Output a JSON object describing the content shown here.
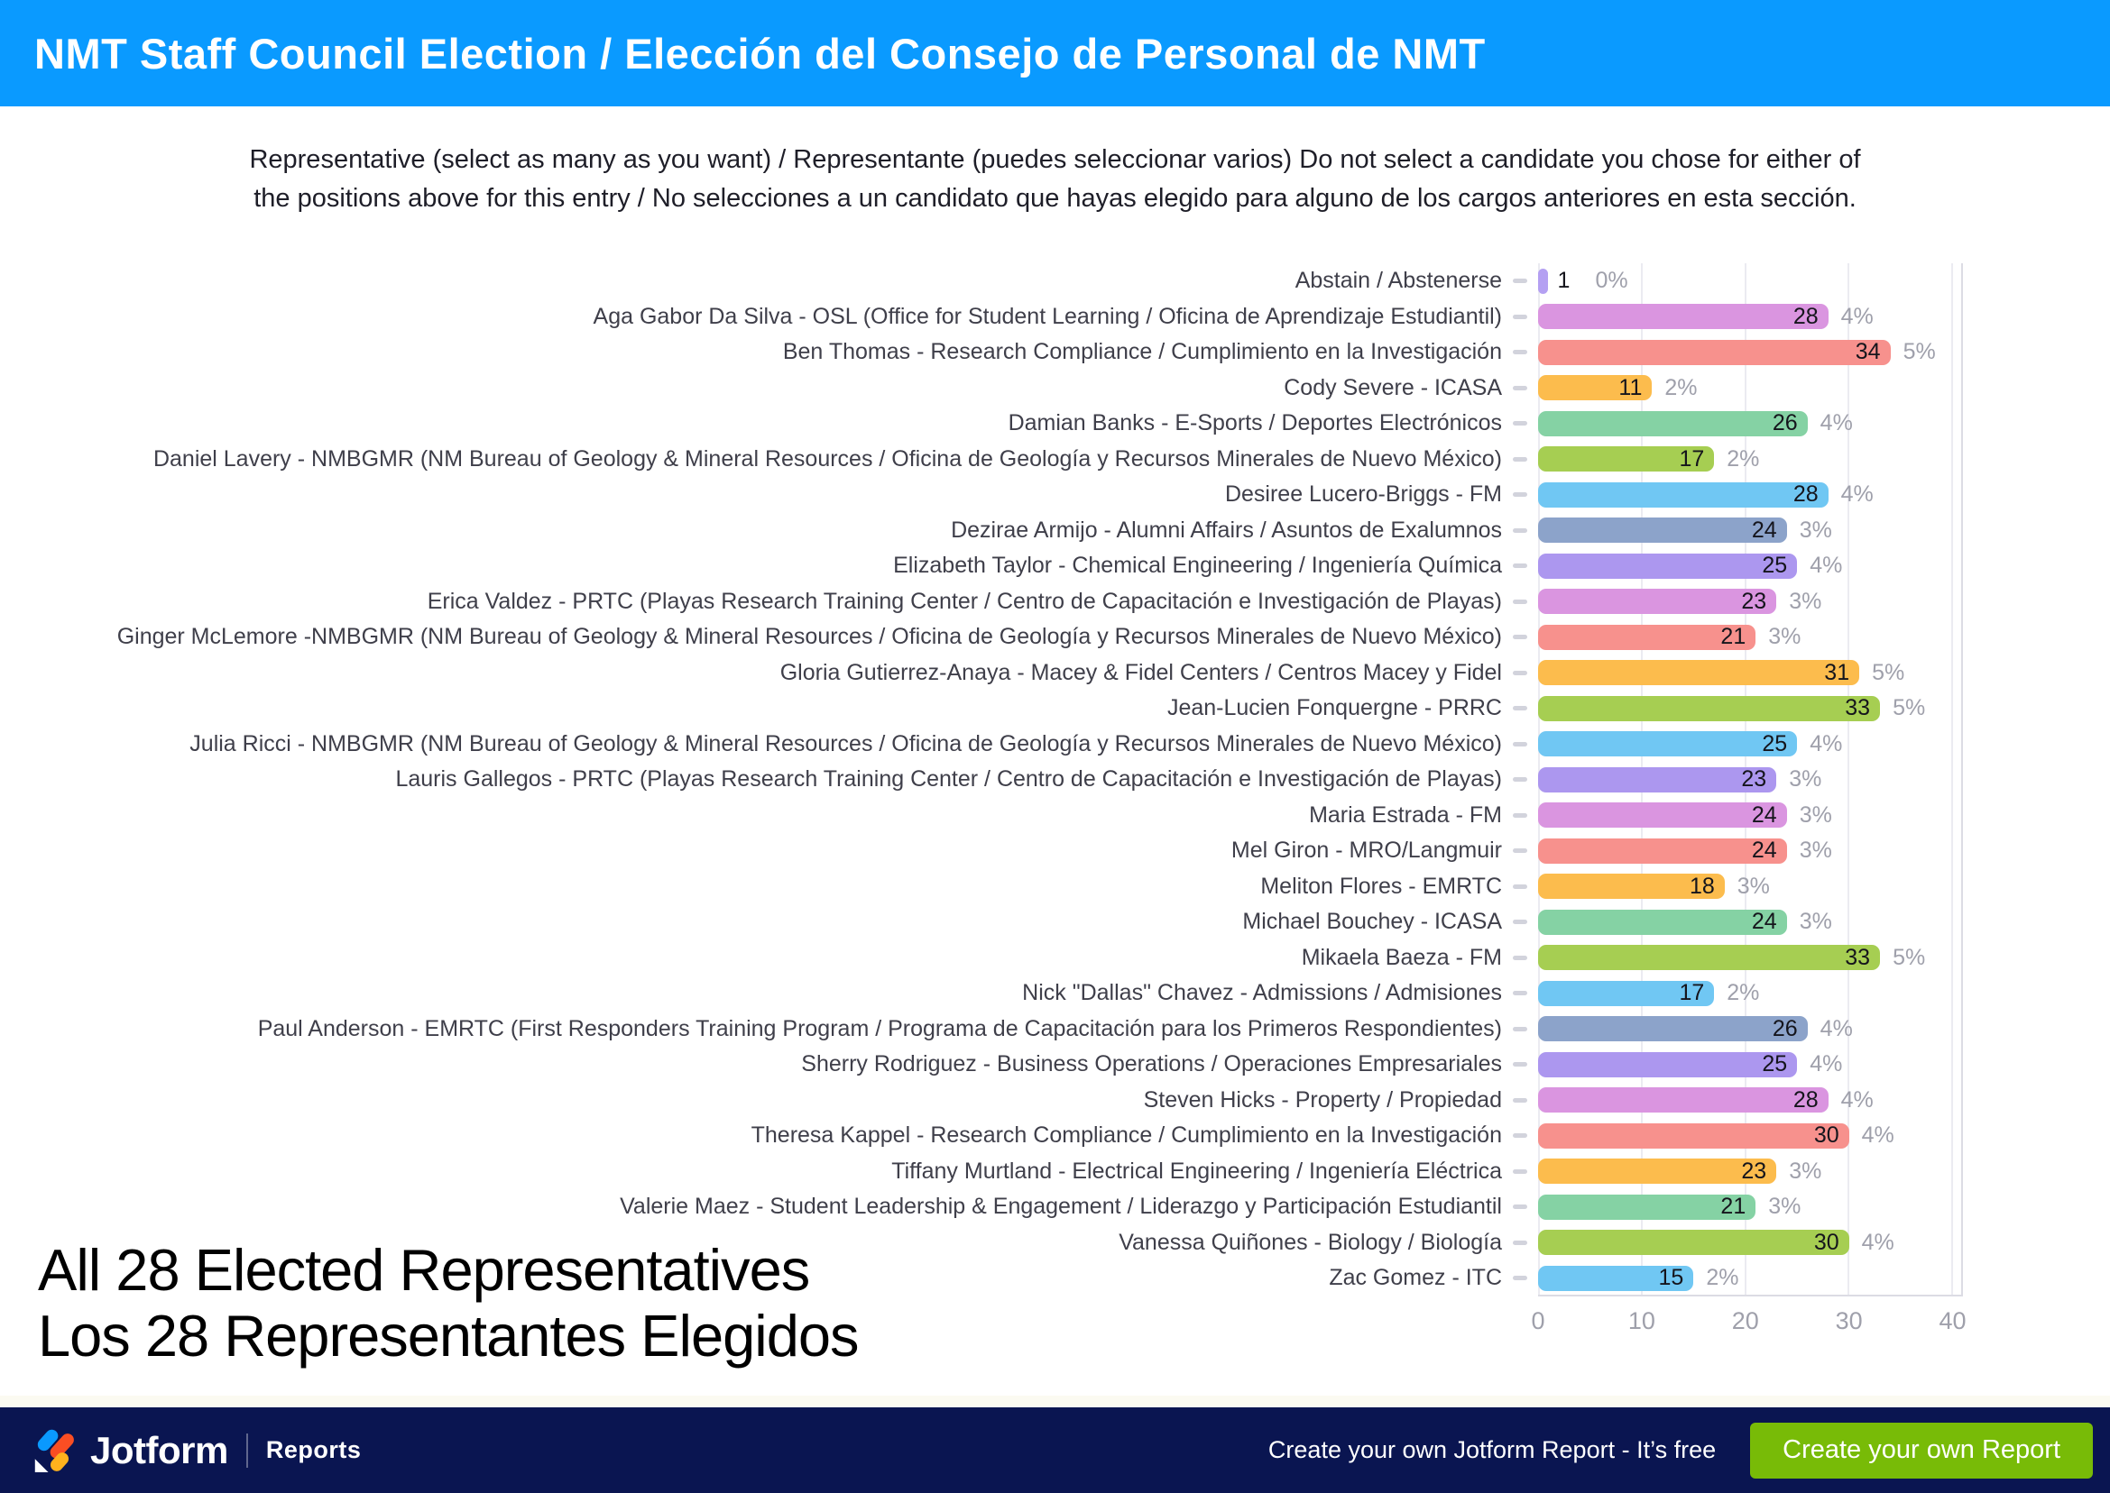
{
  "header": {
    "title": "NMT Staff Council Election / Elección del Consejo de Personal de NMT",
    "bg_color": "#0a9aff"
  },
  "question": {
    "line1": "Representative (select as many as you want) / Representante (puedes seleccionar varios) Do not select a candidate you chose for either of",
    "line2": "the positions above for this entry / No selecciones a un candidato que hayas elegido para alguno de los cargos anteriores en esta sección."
  },
  "chart_data": {
    "type": "bar",
    "orientation": "horizontal",
    "title": "Representative votes per candidate",
    "xlabel": "",
    "ylabel": "",
    "xlim": [
      0,
      41
    ],
    "x_ticks": [
      0,
      10,
      20,
      30,
      40
    ],
    "grid": true,
    "legend": false,
    "rows": [
      {
        "label": "Abstain / Abstenerse",
        "value": 1,
        "percent": "0%",
        "color": "#b4a0f2"
      },
      {
        "label": "Aga Gabor Da Silva - OSL (Office for Student Learning / Oficina de Aprendizaje Estudiantil)",
        "value": 28,
        "percent": "4%",
        "color": "#da95e0"
      },
      {
        "label": "Ben Thomas - Research Compliance / Cumplimiento en la Investigación",
        "value": 34,
        "percent": "5%",
        "color": "#f7918d"
      },
      {
        "label": "Cody Severe - ICASA",
        "value": 11,
        "percent": "2%",
        "color": "#fcbc4d"
      },
      {
        "label": "Damian Banks - E-Sports / Deportes Electrónicos",
        "value": 26,
        "percent": "4%",
        "color": "#85d2a4"
      },
      {
        "label": "Daniel Lavery - NMBGMR (NM Bureau of Geology & Mineral Resources / Oficina de Geología y Recursos Minerales de Nuevo México)",
        "value": 17,
        "percent": "2%",
        "color": "#a6ce52"
      },
      {
        "label": "Desiree Lucero-Briggs - FM",
        "value": 28,
        "percent": "4%",
        "color": "#70c7f3"
      },
      {
        "label": "Dezirae Armijo - Alumni Affairs / Asuntos de Exalumnos",
        "value": 24,
        "percent": "3%",
        "color": "#8ca3ca"
      },
      {
        "label": "Elizabeth Taylor - Chemical Engineering / Ingeniería Química",
        "value": 25,
        "percent": "4%",
        "color": "#ac97ef"
      },
      {
        "label": "Erica Valdez - PRTC (Playas Research Training Center / Centro de Capacitación e Investigación de Playas)",
        "value": 23,
        "percent": "3%",
        "color": "#da95e0"
      },
      {
        "label": "Ginger McLemore -NMBGMR (NM Bureau of Geology & Mineral Resources / Oficina de Geología y Recursos Minerales de Nuevo México)",
        "value": 21,
        "percent": "3%",
        "color": "#f7918d"
      },
      {
        "label": "Gloria Gutierrez-Anaya - Macey & Fidel Centers / Centros Macey y Fidel",
        "value": 31,
        "percent": "5%",
        "color": "#fcbc4d"
      },
      {
        "label": "Jean-Lucien Fonquergne - PRRC",
        "value": 33,
        "percent": "5%",
        "color": "#a6ce52"
      },
      {
        "label": "Julia Ricci - NMBGMR (NM Bureau of Geology & Mineral Resources / Oficina de Geología y Recursos Minerales de Nuevo México)",
        "value": 25,
        "percent": "4%",
        "color": "#70c7f3"
      },
      {
        "label": "Lauris Gallegos - PRTC (Playas Research Training Center / Centro de Capacitación e Investigación de Playas)",
        "value": 23,
        "percent": "3%",
        "color": "#ac97ef"
      },
      {
        "label": "Maria Estrada - FM",
        "value": 24,
        "percent": "3%",
        "color": "#da95e0"
      },
      {
        "label": "Mel Giron - MRO/Langmuir",
        "value": 24,
        "percent": "3%",
        "color": "#f7918d"
      },
      {
        "label": "Meliton Flores - EMRTC",
        "value": 18,
        "percent": "3%",
        "color": "#fcbc4d"
      },
      {
        "label": "Michael Bouchey - ICASA",
        "value": 24,
        "percent": "3%",
        "color": "#85d2a4"
      },
      {
        "label": "Mikaela Baeza - FM",
        "value": 33,
        "percent": "5%",
        "color": "#a6ce52"
      },
      {
        "label": "Nick \"Dallas\" Chavez - Admissions / Admisiones",
        "value": 17,
        "percent": "2%",
        "color": "#70c7f3"
      },
      {
        "label": "Paul Anderson - EMRTC (First Responders Training Program / Programa de Capacitación para los Primeros Respondientes)",
        "value": 26,
        "percent": "4%",
        "color": "#8ca3ca"
      },
      {
        "label": "Sherry Rodriguez - Business Operations / Operaciones Empresariales",
        "value": 25,
        "percent": "4%",
        "color": "#ac97ef"
      },
      {
        "label": "Steven Hicks - Property / Propiedad",
        "value": 28,
        "percent": "4%",
        "color": "#da95e0"
      },
      {
        "label": "Theresa Kappel - Research Compliance / Cumplimiento en la Investigación",
        "value": 30,
        "percent": "4%",
        "color": "#f7918d"
      },
      {
        "label": "Tiffany Murtland - Electrical Engineering / Ingeniería Eléctrica",
        "value": 23,
        "percent": "3%",
        "color": "#fcbc4d"
      },
      {
        "label": "Valerie Maez - Student Leadership & Engagement / Liderazgo y Participación Estudiantil",
        "value": 21,
        "percent": "3%",
        "color": "#85d2a4"
      },
      {
        "label": "Vanessa Quiñones - Biology / Biología",
        "value": 30,
        "percent": "4%",
        "color": "#a6ce52"
      },
      {
        "label": "Zac Gomez - ITC",
        "value": 15,
        "percent": "2%",
        "color": "#70c7f3"
      }
    ]
  },
  "annotation": {
    "line1": "All 28 Elected Representatives",
    "line2": "Los 28 Representantes Elegidos"
  },
  "footer": {
    "brand": "Jotform",
    "product": "Reports",
    "promo": "Create your own Jotform Report - It’s free",
    "button": "Create your own Report",
    "bg_color": "#0a1551",
    "button_color": "#78bb07"
  }
}
